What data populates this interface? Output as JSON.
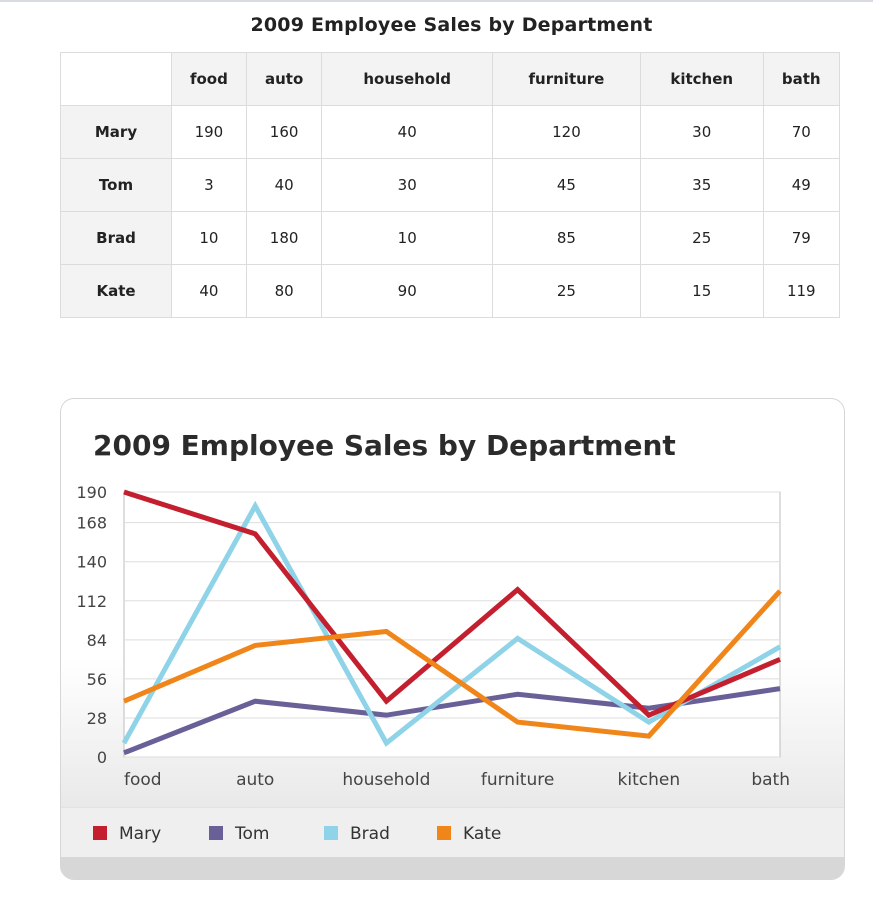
{
  "table": {
    "title": "2009 Employee Sales by Department",
    "columns": [
      "food",
      "auto",
      "household",
      "furniture",
      "kitchen",
      "bath"
    ],
    "rows": [
      {
        "name": "Mary",
        "values": [
          "190",
          "160",
          "40",
          "120",
          "30",
          "70"
        ]
      },
      {
        "name": "Tom",
        "values": [
          "3",
          "40",
          "30",
          "45",
          "35",
          "49"
        ]
      },
      {
        "name": "Brad",
        "values": [
          "10",
          "180",
          "10",
          "85",
          "25",
          "79"
        ]
      },
      {
        "name": "Kate",
        "values": [
          "40",
          "80",
          "90",
          "25",
          "15",
          "119"
        ]
      }
    ]
  },
  "chart_data": {
    "type": "line",
    "title": "2009 Employee Sales by Department",
    "categories": [
      "food",
      "auto",
      "household",
      "furniture",
      "kitchen",
      "bath"
    ],
    "series": [
      {
        "name": "Mary",
        "color": "#c41f2e",
        "values": [
          190,
          160,
          40,
          120,
          30,
          70
        ]
      },
      {
        "name": "Tom",
        "color": "#6a6098",
        "values": [
          3,
          40,
          30,
          45,
          35,
          49
        ]
      },
      {
        "name": "Brad",
        "color": "#8fd3e8",
        "values": [
          10,
          180,
          10,
          85,
          25,
          79
        ]
      },
      {
        "name": "Kate",
        "color": "#f0851a",
        "values": [
          40,
          80,
          90,
          25,
          15,
          119
        ]
      }
    ],
    "yticks": [
      "0",
      "28",
      "56",
      "84",
      "112",
      "140",
      "168",
      "190"
    ],
    "ylim": [
      0,
      190
    ],
    "grid": true,
    "legend": "bottom"
  }
}
